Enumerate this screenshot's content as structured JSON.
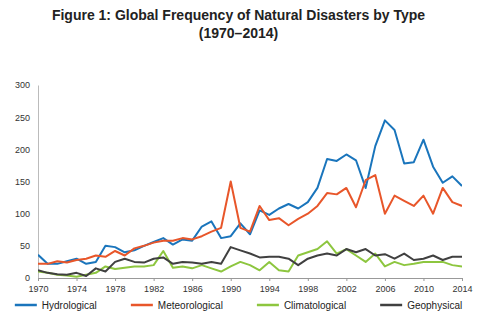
{
  "chart_data": {
    "type": "line",
    "title": "Figure 1: Global Frequency of Natural Disasters by Type",
    "subtitle": "(1970–2014)",
    "x": [
      1970,
      1971,
      1972,
      1973,
      1974,
      1975,
      1976,
      1977,
      1978,
      1979,
      1980,
      1981,
      1982,
      1983,
      1984,
      1985,
      1986,
      1987,
      1988,
      1989,
      1990,
      1991,
      1992,
      1993,
      1994,
      1995,
      1996,
      1997,
      1998,
      1999,
      2000,
      2001,
      2002,
      2003,
      2004,
      2005,
      2006,
      2007,
      2008,
      2009,
      2010,
      2011,
      2012,
      2013,
      2014
    ],
    "series": [
      {
        "name": "Hydrological",
        "color": "#1a75bc",
        "values": [
          36,
          22,
          22,
          26,
          30,
          22,
          25,
          50,
          48,
          40,
          43,
          50,
          56,
          62,
          52,
          60,
          58,
          80,
          88,
          62,
          65,
          85,
          68,
          105,
          98,
          108,
          115,
          108,
          118,
          140,
          185,
          182,
          192,
          183,
          140,
          205,
          245,
          230,
          178,
          180,
          215,
          173,
          148,
          158,
          143
        ]
      },
      {
        "name": "Meteorological",
        "color": "#e8562a",
        "values": [
          22,
          22,
          26,
          24,
          28,
          30,
          35,
          33,
          42,
          35,
          46,
          50,
          55,
          58,
          58,
          62,
          60,
          65,
          72,
          78,
          150,
          78,
          72,
          112,
          90,
          93,
          82,
          92,
          100,
          112,
          132,
          130,
          140,
          110,
          152,
          160,
          100,
          128,
          120,
          112,
          128,
          100,
          140,
          118,
          112
        ]
      },
      {
        "name": "Climatological",
        "color": "#8dc63f",
        "values": [
          10,
          8,
          5,
          4,
          2,
          5,
          8,
          18,
          14,
          16,
          18,
          18,
          20,
          42,
          16,
          18,
          15,
          20,
          15,
          10,
          18,
          25,
          20,
          12,
          25,
          12,
          10,
          35,
          40,
          45,
          57,
          38,
          45,
          35,
          25,
          38,
          18,
          25,
          20,
          22,
          25,
          25,
          25,
          20,
          18
        ]
      },
      {
        "name": "Geophysical",
        "color": "#404040",
        "values": [
          12,
          8,
          6,
          5,
          8,
          3,
          15,
          10,
          25,
          30,
          25,
          24,
          30,
          32,
          22,
          25,
          24,
          22,
          25,
          22,
          48,
          43,
          38,
          32,
          33,
          33,
          30,
          20,
          30,
          35,
          38,
          35,
          45,
          40,
          45,
          35,
          37,
          30,
          38,
          28,
          30,
          35,
          28,
          33,
          33
        ]
      }
    ],
    "xlim": [
      1970,
      2014
    ],
    "xticks": [
      1970,
      1974,
      1978,
      1982,
      1986,
      1990,
      1994,
      1998,
      2002,
      2006,
      2010,
      2014
    ],
    "ylim": [
      0,
      300
    ],
    "yticks": [
      0,
      50,
      100,
      150,
      200,
      250,
      300
    ],
    "grid": false,
    "legend": "bottom"
  }
}
